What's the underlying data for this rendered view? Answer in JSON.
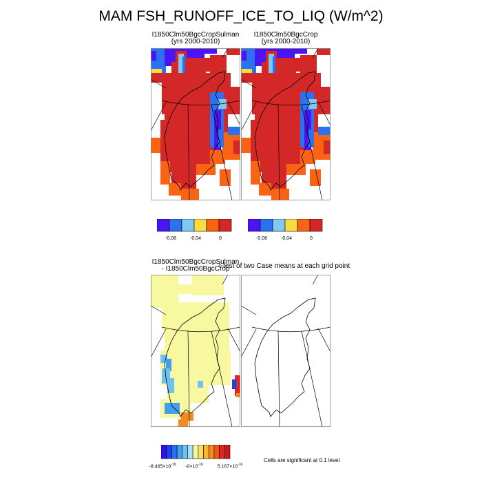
{
  "title": "MAM FSH_RUNOFF_ICE_TO_LIQ (W/m^2)",
  "panels": [
    {
      "line1": "I1850Clm50BgcCropSulman",
      "line2": "(yrs 2000-2010)"
    },
    {
      "line1": "I1850Clm50BgcCrop",
      "line2": "(yrs 2000-2010)"
    },
    {
      "line1": "I1850Clm50BgcCropSulman",
      "line2": "- I1850Clm50BgcCrop"
    },
    {
      "line1": "t-test of two Case means at each grid point",
      "line2": ""
    }
  ],
  "colorbar_top": {
    "colors": [
      "#4a14f5",
      "#2a72f0",
      "#80c8f0",
      "#f8dc40",
      "#f86414",
      "#d42828"
    ],
    "ticks": [
      "-0.08",
      "-0.04",
      "0"
    ]
  },
  "colorbar_diff": {
    "colors": [
      "#3010f0",
      "#2040f0",
      "#2a70f0",
      "#40a0f0",
      "#70c0f0",
      "#a8e0f8",
      "#f8f8a0",
      "#f8e060",
      "#f8b830",
      "#f88820",
      "#f05818",
      "#e02820",
      "#c81818"
    ],
    "ticks": [
      "-8.465×10",
      "-0×10",
      "5.167×10"
    ],
    "tick_exponents": [
      "-16",
      "-16",
      "-16"
    ]
  },
  "significance_note": "Cells are significant at 0.1 level",
  "chart_data": [
    {
      "type": "heatmap",
      "title": "I1850Clm50BgcCropSulman (yrs 2000-2010)",
      "colorbar_ticks": [
        -0.08,
        -0.04,
        0
      ],
      "dominant_value": 0,
      "region": "Greenland"
    },
    {
      "type": "heatmap",
      "title": "I1850Clm50BgcCrop (yrs 2000-2010)",
      "colorbar_ticks": [
        -0.08,
        -0.04,
        0
      ],
      "dominant_value": 0,
      "region": "Greenland"
    },
    {
      "type": "heatmap",
      "title": "I1850Clm50BgcCropSulman - I1850Clm50BgcCrop",
      "colorbar_ticks": [
        -8.465e-16,
        0,
        5.167e-16
      ],
      "dominant_value": 0,
      "region": "Greenland"
    },
    {
      "type": "heatmap",
      "title": "t-test of two Case means at each grid point",
      "significant_cells": 0,
      "region": "Greenland"
    }
  ]
}
